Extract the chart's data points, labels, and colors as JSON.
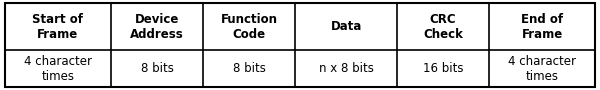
{
  "headers": [
    "Start of\nFrame",
    "Device\nAddress",
    "Function\nCode",
    "Data",
    "CRC\nCheck",
    "End of\nFrame"
  ],
  "values": [
    "4 character\ntimes",
    "8 bits",
    "8 bits",
    "n x 8 bits",
    "16 bits",
    "4 character\ntimes"
  ],
  "col_widths": [
    1.15,
    1.0,
    1.0,
    1.1,
    1.0,
    1.15
  ],
  "background_color": "#ffffff",
  "border_color": "#000000",
  "header_fontsize": 8.5,
  "value_fontsize": 8.5,
  "fig_width": 6.0,
  "fig_height": 0.9,
  "dpi": 100
}
